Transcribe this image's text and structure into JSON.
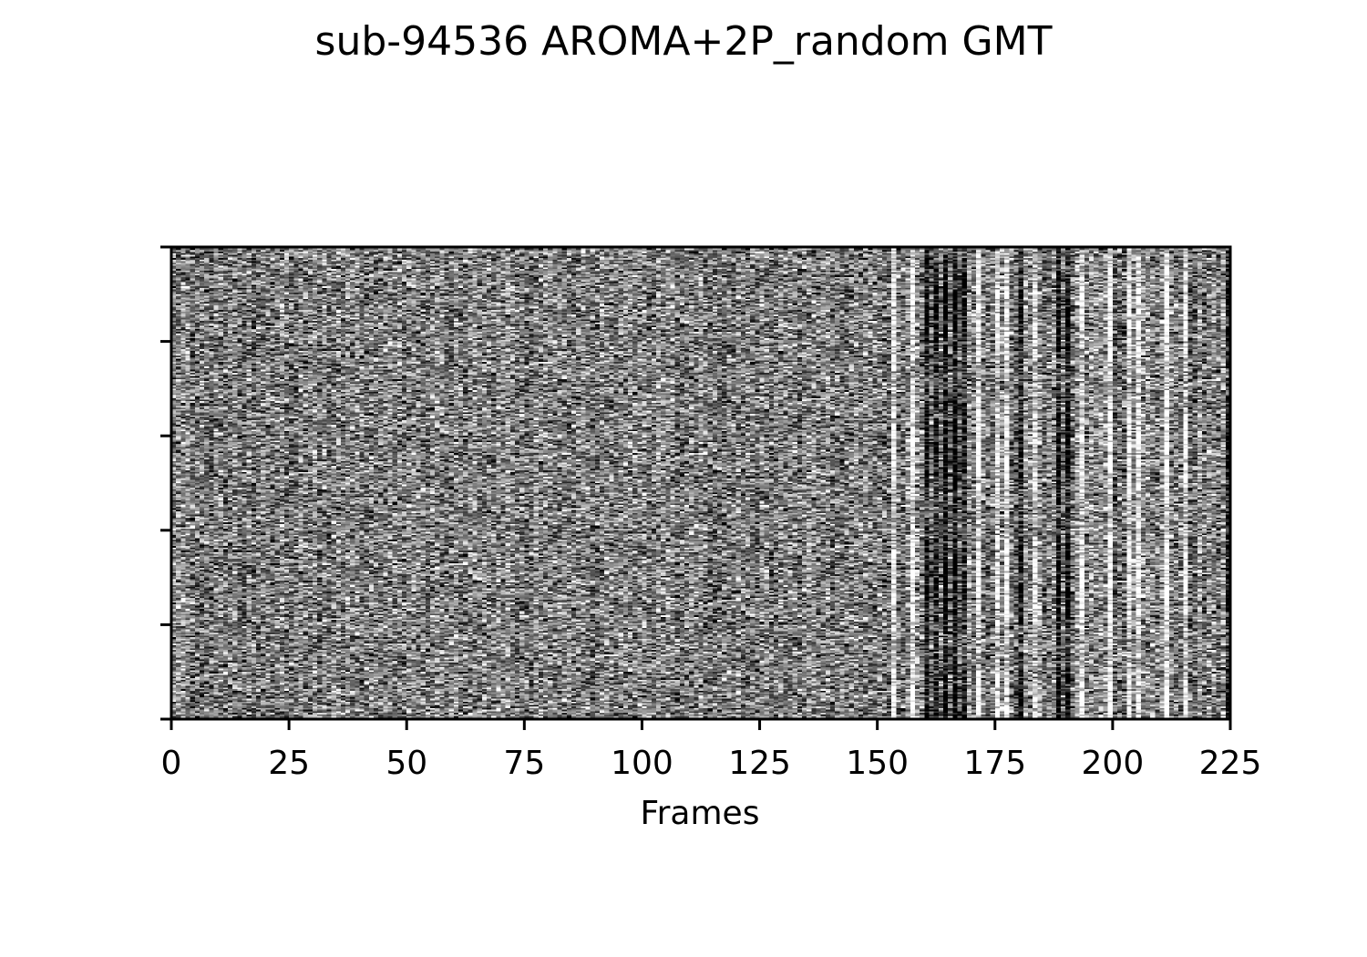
{
  "chart_data": {
    "type": "heatmap",
    "title": "sub-94536 AROMA+2P_random GMT",
    "xlabel": "Frames",
    "ylabel": "",
    "xlim": [
      0,
      225
    ],
    "x_ticks": [
      0,
      25,
      50,
      75,
      100,
      125,
      150,
      175,
      200,
      225
    ],
    "x_tick_labels": [
      "0",
      "25",
      "50",
      "75",
      "100",
      "125",
      "150",
      "175",
      "200",
      "225"
    ],
    "y_tick_count": 6,
    "y_tick_labels": [],
    "colormap": "gray",
    "grid": false,
    "legend": "none",
    "colors": {
      "low": "#000000",
      "high": "#ffffff"
    },
    "high_variance_frames": [
      153,
      157,
      160,
      162,
      164,
      166,
      168,
      171,
      175,
      177,
      180,
      183,
      188,
      190,
      193,
      199,
      203,
      205,
      211,
      215,
      224
    ]
  }
}
